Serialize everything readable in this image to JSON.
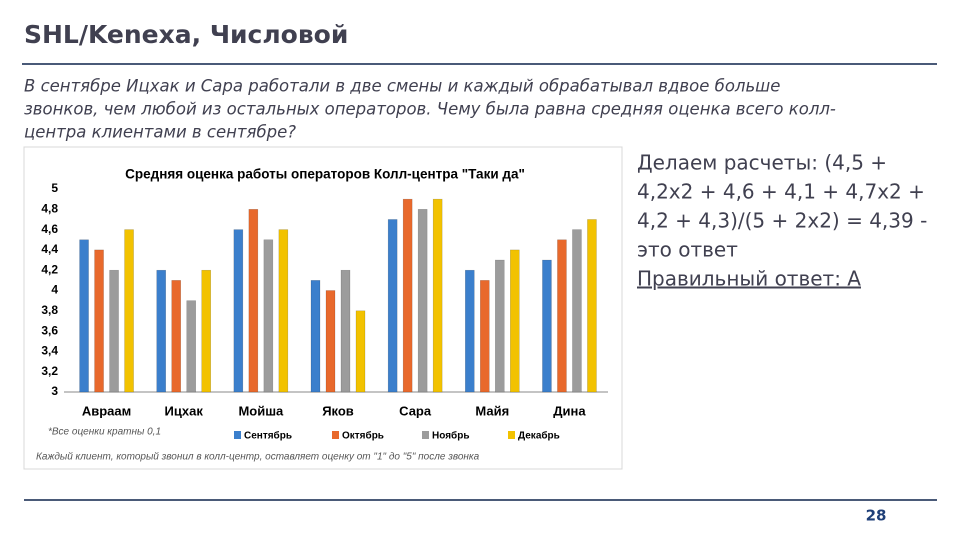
{
  "header": {
    "title": "SHL/Kenexa, Числовой"
  },
  "question": {
    "lines": [
      "В сентябре Ицхак и Сара работали в две смены и каждый обрабатывал вдвое больше",
      "звонков, чем любой из остальных операторов. Чему была равна средняя оценка всего колл-",
      "центра клиентами в сентябре?"
    ]
  },
  "solution": {
    "lines": [
      "Делаем расчеты: (4,5 +",
      "4,2х2 + 4,6 + 4,1 + 4,7х2 +",
      "4,2 + 4,3)/(5 + 2х2) = 4,39 -",
      "это ответ"
    ],
    "answer": "Правильный ответ: А"
  },
  "page_number": "28",
  "chart_data": {
    "type": "bar",
    "title": "Средняя оценка работы операторов Колл-центра \"Таки да\"",
    "categories": [
      "Авраам",
      "Ицхак",
      "Мойша",
      "Яков",
      "Сара",
      "Майя",
      "Дина"
    ],
    "series": [
      {
        "name": "Сентябрь",
        "color": "#3b7fcc",
        "values": [
          4.5,
          4.2,
          4.6,
          4.1,
          4.7,
          4.2,
          4.3
        ]
      },
      {
        "name": "Октябрь",
        "color": "#e8692c",
        "values": [
          4.4,
          4.1,
          4.8,
          4.0,
          4.9,
          4.1,
          4.5
        ]
      },
      {
        "name": "Ноябрь",
        "color": "#9c9c9c",
        "values": [
          4.2,
          3.9,
          4.5,
          4.2,
          4.8,
          4.3,
          4.6
        ]
      },
      {
        "name": "Декабрь",
        "color": "#f2c200",
        "values": [
          4.6,
          4.2,
          4.6,
          3.8,
          4.9,
          4.4,
          4.7
        ]
      }
    ],
    "ylim": [
      3,
      5
    ],
    "yticks": [
      3,
      {
        "value": 3.2,
        "label": "3,2"
      },
      {
        "value": 3.4,
        "label": "3,4"
      },
      {
        "value": 3.6,
        "label": "3,6"
      },
      {
        "value": 3.8,
        "label": "3,8"
      },
      4,
      {
        "value": 4.2,
        "label": "4,2"
      },
      {
        "value": 4.4,
        "label": "4,4"
      },
      {
        "value": 4.6,
        "label": "4,6"
      },
      {
        "value": 4.8,
        "label": "4,8"
      },
      5
    ],
    "notes": [
      "*Все оценки кратны 0,1",
      "Каждый клиент, который звонил в колл-центр, оставляет оценку от \"1\" до \"5\" после звонка"
    ],
    "grid": false
  }
}
